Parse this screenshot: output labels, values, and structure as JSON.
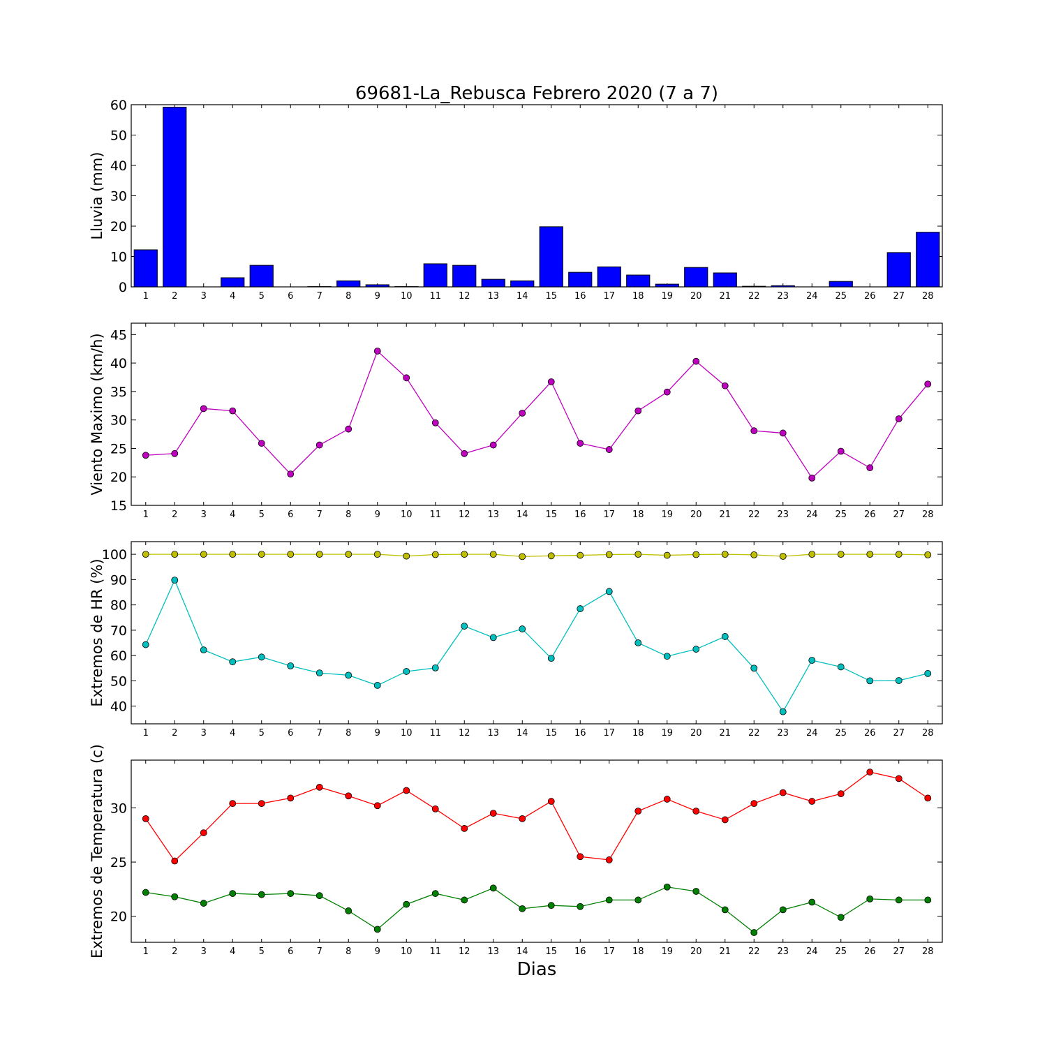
{
  "figure": {
    "title": "69681-La_Rebusca Febrero 2020  (7 a 7)",
    "xlabel": "Dias"
  },
  "chart_data": [
    {
      "type": "bar",
      "ylabel": "Lluvia (mm)",
      "ylim": [
        0,
        60
      ],
      "yticks": [
        0,
        10,
        20,
        30,
        40,
        50,
        60
      ],
      "categories": [
        1,
        2,
        3,
        4,
        5,
        6,
        7,
        8,
        9,
        10,
        11,
        12,
        13,
        14,
        15,
        16,
        17,
        18,
        19,
        20,
        21,
        22,
        23,
        24,
        25,
        26,
        27,
        28
      ],
      "series": [
        {
          "color": "#0000ff",
          "values": [
            12.2,
            59.2,
            0.0,
            3.0,
            7.1,
            0.0,
            0.1,
            2.0,
            0.7,
            0.1,
            7.6,
            7.1,
            2.5,
            2.0,
            19.8,
            4.8,
            6.6,
            3.9,
            0.9,
            6.4,
            4.6,
            0.2,
            0.4,
            0.0,
            1.8,
            0.0,
            11.3,
            18.0
          ]
        }
      ]
    },
    {
      "type": "line",
      "ylabel": "Viento Maximo (km/h)",
      "ylim": [
        15,
        47
      ],
      "yticks": [
        15,
        20,
        25,
        30,
        35,
        40,
        45
      ],
      "x": [
        1,
        2,
        3,
        4,
        5,
        6,
        7,
        8,
        9,
        10,
        11,
        12,
        13,
        14,
        15,
        16,
        17,
        18,
        19,
        20,
        21,
        22,
        23,
        24,
        25,
        26,
        27,
        28
      ],
      "series": [
        {
          "color": "#bf00bf",
          "values": [
            23.8,
            24.1,
            32.0,
            31.6,
            25.9,
            20.5,
            25.6,
            28.4,
            42.1,
            37.4,
            29.5,
            24.1,
            25.6,
            31.2,
            36.7,
            25.9,
            24.8,
            31.6,
            34.9,
            40.3,
            36.0,
            28.1,
            27.7,
            19.8,
            24.5,
            21.6,
            30.2,
            36.3
          ]
        }
      ]
    },
    {
      "type": "line",
      "ylabel": "Extremos de HR (%)",
      "ylim": [
        33,
        105
      ],
      "yticks": [
        40,
        50,
        60,
        70,
        80,
        90,
        100
      ],
      "x": [
        1,
        2,
        3,
        4,
        5,
        6,
        7,
        8,
        9,
        10,
        11,
        12,
        13,
        14,
        15,
        16,
        17,
        18,
        19,
        20,
        21,
        22,
        23,
        24,
        25,
        26,
        27,
        28
      ],
      "series": [
        {
          "color": "#bfbf00",
          "values": [
            100,
            100,
            100,
            100,
            100,
            100,
            100,
            100,
            100,
            99.3,
            99.9,
            100,
            100,
            99.1,
            99.4,
            99.6,
            99.9,
            100,
            99.6,
            99.9,
            100,
            99.8,
            99.2,
            100,
            100,
            100,
            100,
            99.8
          ]
        },
        {
          "color": "#00bfbf",
          "values": [
            64.3,
            89.8,
            62.2,
            57.5,
            59.4,
            55.9,
            53.1,
            52.2,
            48.2,
            53.7,
            55.1,
            71.6,
            67.1,
            70.5,
            58.9,
            78.5,
            85.3,
            65.0,
            59.7,
            62.5,
            67.5,
            55.0,
            37.8,
            58.1,
            55.5,
            50.0,
            50.1,
            52.9
          ]
        }
      ]
    },
    {
      "type": "line",
      "ylabel": "Extremos de Temperatura (c)",
      "ylim": [
        17.6,
        34.4
      ],
      "yticks": [
        20,
        25,
        30
      ],
      "x": [
        1,
        2,
        3,
        4,
        5,
        6,
        7,
        8,
        9,
        10,
        11,
        12,
        13,
        14,
        15,
        16,
        17,
        18,
        19,
        20,
        21,
        22,
        23,
        24,
        25,
        26,
        27,
        28
      ],
      "series": [
        {
          "color": "#ff0000",
          "values": [
            29.0,
            25.1,
            27.7,
            30.4,
            30.4,
            30.9,
            31.9,
            31.1,
            30.2,
            31.6,
            29.9,
            28.1,
            29.5,
            29.0,
            30.6,
            25.5,
            25.2,
            29.7,
            30.8,
            29.7,
            28.9,
            30.4,
            31.4,
            30.6,
            31.3,
            33.3,
            32.7,
            30.9
          ]
        },
        {
          "color": "#008000",
          "values": [
            22.2,
            21.8,
            21.2,
            22.1,
            22.0,
            22.1,
            21.9,
            20.5,
            18.8,
            21.1,
            22.1,
            21.5,
            22.6,
            20.7,
            21.0,
            20.9,
            21.5,
            21.5,
            22.7,
            22.3,
            20.6,
            18.5,
            20.6,
            21.3,
            19.9,
            21.6,
            21.5,
            21.5
          ]
        }
      ]
    }
  ]
}
